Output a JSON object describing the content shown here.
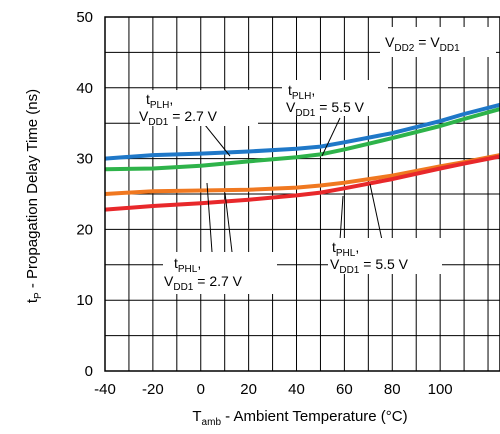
{
  "chart_data": {
    "type": "line",
    "x_axis": {
      "label_main": "T",
      "label_sub": "amb",
      "label_rest": " - Ambient Temperature (°C)",
      "range": [
        -40,
        125
      ],
      "ticks": [
        -40,
        -20,
        0,
        20,
        40,
        60,
        80,
        100
      ]
    },
    "y_axis": {
      "label_main": "t",
      "label_sub": "P",
      "label_rest": " - Propagation Delay Time (ns)",
      "range": [
        0,
        50
      ],
      "ticks": [
        0,
        10,
        20,
        30,
        40,
        50
      ]
    },
    "grid": true,
    "condition_box": {
      "a": "V",
      "a_sub": "DD2",
      "mid": " = V",
      "b_sub": "DD1"
    },
    "series": [
      {
        "name_main": "t",
        "name_sub": "PLH",
        "name_tail": ",",
        "vline_main": "V",
        "vline_sub": "DD1",
        "vline_tail": " = 5.5 V",
        "color": "#2EB34A",
        "x": [
          -40,
          -20,
          0,
          20,
          40,
          50,
          60,
          80,
          100,
          110,
          125
        ],
        "y": [
          28.5,
          28.6,
          29.0,
          29.6,
          30.2,
          30.6,
          31.3,
          32.9,
          34.6,
          35.6,
          37.0
        ]
      },
      {
        "name_main": "t",
        "name_sub": "PLH",
        "name_tail": ",",
        "vline_main": "V",
        "vline_sub": "DD1",
        "vline_tail": " = 2.7 V",
        "color": "#1F78C8",
        "x": [
          -40,
          -20,
          0,
          20,
          40,
          50,
          60,
          80,
          100,
          110,
          125
        ],
        "y": [
          30.0,
          30.5,
          30.7,
          31.0,
          31.4,
          31.7,
          32.3,
          33.6,
          35.3,
          36.3,
          37.6
        ]
      },
      {
        "name_main": "t",
        "name_sub": "PHL",
        "name_tail": ",",
        "vline_main": "V",
        "vline_sub": "DD1",
        "vline_tail": " = 2.7 V",
        "color": "#F07820",
        "x": [
          -40,
          -20,
          0,
          20,
          40,
          50,
          60,
          80,
          100,
          110,
          125
        ],
        "y": [
          25.0,
          25.4,
          25.5,
          25.6,
          25.9,
          26.2,
          26.6,
          27.6,
          28.9,
          29.5,
          30.5
        ]
      },
      {
        "name_main": "t",
        "name_sub": "PHL",
        "name_tail": ",",
        "vline_main": "V",
        "vline_sub": "DD1",
        "vline_tail": " = 5.5 V",
        "color": "#E8282B",
        "x": [
          -40,
          -20,
          0,
          20,
          40,
          50,
          60,
          80,
          100,
          110,
          125
        ],
        "y": [
          22.8,
          23.3,
          23.7,
          24.2,
          24.8,
          25.2,
          25.8,
          27.1,
          28.6,
          29.3,
          30.3
        ]
      }
    ]
  }
}
